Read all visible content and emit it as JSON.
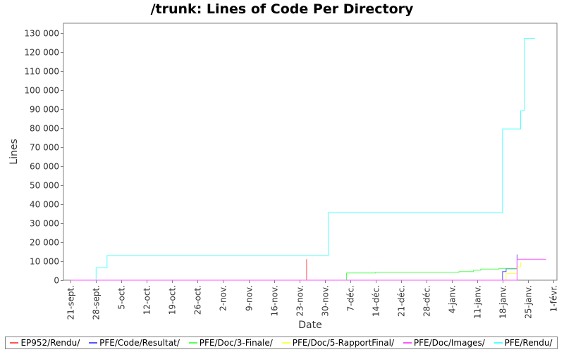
{
  "chart_data": {
    "type": "line",
    "title": "/trunk: Lines of Code Per Directory",
    "xlabel": "Date",
    "ylabel": "Lines",
    "x_ticks": [
      "21-sept.",
      "28-sept.",
      "5-oct.",
      "12-oct.",
      "19-oct.",
      "26-oct.",
      "2-nov.",
      "9-nov.",
      "16-nov.",
      "23-nov.",
      "30-nov.",
      "7-déc.",
      "14-déc.",
      "21-déc.",
      "28-déc.",
      "4-janv.",
      "11-janv.",
      "18-janv.",
      "25-janv.",
      "1-févr."
    ],
    "xlim": [
      "2008-09-19",
      "2009-02-02"
    ],
    "ylim": [
      0,
      135000
    ],
    "y_ticks": [
      0,
      10000,
      20000,
      30000,
      40000,
      50000,
      60000,
      70000,
      80000,
      90000,
      100000,
      110000,
      120000,
      130000
    ],
    "y_tick_labels": [
      "0",
      "10 000",
      "20 000",
      "30 000",
      "40 000",
      "50 000",
      "60 000",
      "70 000",
      "80 000",
      "90 000",
      "100 000",
      "110 000",
      "120 000",
      "130 000"
    ],
    "grid": false,
    "legend_position": "bottom",
    "series": [
      {
        "name": "EP952/Rendu/",
        "color": "#ff5555",
        "points": [
          [
            "2008-09-21",
            0
          ],
          [
            "2008-11-25",
            0
          ],
          [
            "2008-11-25",
            5000
          ],
          [
            "2008-11-25",
            11000
          ]
        ]
      },
      {
        "name": "PFE/Code/Resultat/",
        "color": "#5555ff",
        "points": [
          [
            "2008-09-21",
            0
          ],
          [
            "2009-01-18",
            0
          ],
          [
            "2009-01-18",
            4500
          ],
          [
            "2009-01-19",
            4500
          ],
          [
            "2009-01-19",
            6000
          ],
          [
            "2009-01-22",
            6000
          ],
          [
            "2009-01-22",
            13500
          ]
        ]
      },
      {
        "name": "PFE/Doc/3-Finale/",
        "color": "#55ff55",
        "points": [
          [
            "2008-09-21",
            0
          ],
          [
            "2008-12-06",
            0
          ],
          [
            "2008-12-06",
            3800
          ],
          [
            "2008-12-14",
            3800
          ],
          [
            "2008-12-14",
            4100
          ],
          [
            "2009-01-06",
            4100
          ],
          [
            "2009-01-06",
            4500
          ],
          [
            "2009-01-10",
            4500
          ],
          [
            "2009-01-10",
            5200
          ],
          [
            "2009-01-12",
            5200
          ],
          [
            "2009-01-12",
            5800
          ],
          [
            "2009-01-17",
            5800
          ],
          [
            "2009-01-17",
            6200
          ],
          [
            "2009-01-22",
            6200
          ]
        ]
      },
      {
        "name": "PFE/Doc/5-RapportFinal/",
        "color": "#ffff55",
        "points": [
          [
            "2008-09-21",
            0
          ],
          [
            "2009-01-19",
            0
          ],
          [
            "2009-01-19",
            3500
          ],
          [
            "2009-01-22",
            3500
          ],
          [
            "2009-01-22",
            7000
          ],
          [
            "2009-01-23",
            7000
          ],
          [
            "2009-01-23",
            9500
          ]
        ]
      },
      {
        "name": "PFE/Doc/Images/",
        "color": "#ff55ff",
        "points": [
          [
            "2008-09-21",
            0
          ],
          [
            "2009-01-22",
            0
          ],
          [
            "2009-01-22",
            11000
          ],
          [
            "2009-01-30",
            11000
          ]
        ]
      },
      {
        "name": "PFE/Rendu/",
        "color": "#55ffff",
        "points": [
          [
            "2008-09-28",
            0
          ],
          [
            "2008-09-28",
            6500
          ],
          [
            "2008-10-01",
            6500
          ],
          [
            "2008-10-01",
            13000
          ],
          [
            "2008-12-01",
            13000
          ],
          [
            "2008-12-01",
            35500
          ],
          [
            "2009-01-18",
            35500
          ],
          [
            "2009-01-18",
            79500
          ],
          [
            "2009-01-23",
            79500
          ],
          [
            "2009-01-23",
            89000
          ],
          [
            "2009-01-24",
            89000
          ],
          [
            "2009-01-24",
            127000
          ],
          [
            "2009-01-27",
            127000
          ]
        ]
      }
    ]
  }
}
